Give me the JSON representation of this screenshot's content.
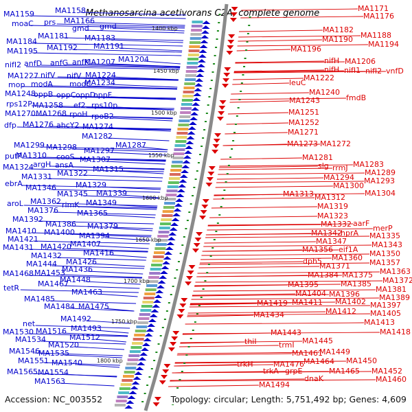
{
  "title": "Methanosarcina acetivorans C2A, complete genome",
  "accession_label": "Accession: NC_003552",
  "summary_label": "Topology: circular; Length: 5,751,492 bp; Genes: 4,609",
  "colors": {
    "left_genes": "#0000cc",
    "right_genes": "#dd0000",
    "backbone": "#8a8a8a",
    "tick_marks": "#1a8a1a"
  },
  "kbp_ticks": [
    "1400 kbp",
    "1450 kbp",
    "1500 kbp",
    "1550 kbp",
    "1600 kbp",
    "1650 kbp",
    "1700 kbp",
    "1750 kbp",
    "1800 kbp"
  ],
  "left_rows": [
    [
      [
        "MA1159",
        5,
        20
      ],
      [
        "MA1158",
        80,
        15
      ],
      [
        "moaC",
        17,
        34
      ],
      [
        "prs",
        64,
        32
      ],
      [
        "MA1166",
        93,
        30
      ]
    ],
    [
      [
        "gmd",
        105,
        41
      ],
      [
        "gmd",
        145,
        38
      ]
    ],
    [
      [
        "MA1181",
        55,
        52
      ],
      [
        "MA1183",
        123,
        55
      ]
    ],
    [
      [
        "MA1184",
        9,
        60
      ],
      [
        "MA1192",
        68,
        69
      ],
      [
        "MA1191",
        136,
        67
      ]
    ],
    [
      [
        "MA1195",
        10,
        74
      ]
    ],
    [
      [
        "MA1204",
        172,
        86
      ]
    ],
    [
      [
        "nifI2",
        7,
        94
      ],
      [
        "anfD",
        35,
        92
      ],
      [
        "anfG",
        73,
        91
      ],
      [
        "anfK",
        105,
        90
      ],
      [
        "MA1207",
        123,
        90
      ]
    ],
    [
      [
        "MA1227",
        11,
        110
      ],
      [
        "nifV",
        59,
        109
      ],
      [
        "nifV",
        97,
        110
      ],
      [
        "MA1224",
        124,
        109
      ]
    ],
    [
      [
        "mop",
        12,
        123
      ],
      [
        "modA",
        45,
        122
      ],
      [
        "modC",
        101,
        122
      ],
      [
        "MA1234",
        123,
        120
      ]
    ],
    [
      [
        "MA1248",
        7,
        136
      ],
      [
        "oppB",
        49,
        137
      ],
      [
        "oppC",
        82,
        138
      ],
      [
        "oppD",
        110,
        138
      ],
      [
        "oppF",
        136,
        138
      ]
    ],
    [
      [
        "rps12P",
        9,
        151
      ],
      [
        "MA1258",
        47,
        153
      ],
      [
        "ef2",
        107,
        153
      ],
      [
        "rps10p",
        133,
        153
      ]
    ],
    [
      [
        "MA1270",
        7,
        165
      ],
      [
        "MA1268",
        52,
        165
      ],
      [
        "rpoH",
        101,
        166
      ],
      [
        "rpoB2",
        133,
        169
      ]
    ],
    [
      [
        "dfp",
        6,
        182
      ],
      [
        "MA1276",
        33,
        181
      ],
      [
        "ahcY2",
        82,
        182
      ],
      [
        "MA1274",
        120,
        184
      ]
    ],
    [
      [
        "MA1282",
        119,
        198
      ]
    ],
    [
      [
        "MA1287",
        168,
        211
      ]
    ],
    [
      [
        "MA1299",
        20,
        211
      ],
      [
        "MA1298",
        67,
        214
      ],
      [
        "MA1297",
        122,
        219
      ]
    ],
    [
      [
        "putP",
        7,
        227
      ],
      [
        "MA1310",
        23,
        226
      ],
      [
        "cooS",
        82,
        228
      ],
      [
        "MA1307",
        116,
        232
      ]
    ],
    [
      [
        "argH",
        48,
        239
      ],
      [
        "ansA",
        80,
        240
      ],
      [
        "MA1324",
        4,
        243
      ],
      [
        "MA1315",
        135,
        246
      ]
    ],
    [
      [
        "MA1322",
        83,
        252
      ]
    ],
    [
      [
        "MA1331",
        31,
        257
      ]
    ],
    [
      [
        "ebrA",
        7,
        267
      ],
      [
        "MA1329",
        110,
        269
      ]
    ],
    [
      [
        "MA1346",
        37,
        273
      ],
      [
        "MA1345",
        83,
        282
      ],
      [
        "MA1339",
        140,
        281
      ]
    ],
    [
      [
        "aroL",
        10,
        296
      ],
      [
        "MA1362",
        44,
        293
      ],
      [
        "rimK",
        90,
        298
      ],
      [
        "MA1349",
        125,
        295
      ]
    ],
    [
      [
        "MA1376",
        40,
        306
      ],
      [
        "MA1365",
        112,
        310
      ]
    ],
    [
      [
        "MA1392",
        18,
        319
      ],
      [
        "MA1386",
        66,
        326
      ],
      [
        "MA1379",
        127,
        329
      ]
    ],
    [
      [
        "MA1410",
        8,
        336
      ],
      [
        "MA1400",
        64,
        338
      ]
    ],
    [
      [
        "MA1421",
        11,
        348
      ],
      [
        "MA1394",
        115,
        343
      ]
    ],
    [
      [
        "MA1407",
        102,
        355
      ]
    ],
    [
      [
        "MA1431",
        4,
        360
      ],
      [
        "MA1420",
        59,
        359
      ]
    ],
    [
      [
        "MA1416",
        121,
        368
      ]
    ],
    [
      [
        "MA1432",
        45,
        372
      ]
    ],
    [
      [
        "MA1444",
        38,
        384
      ],
      [
        "MA1426",
        96,
        381
      ]
    ],
    [
      [
        "MA1468",
        4,
        398
      ],
      [
        "MA1453",
        50,
        397
      ],
      [
        "MA1436",
        90,
        392
      ]
    ],
    [
      [
        "MA1448",
        87,
        407
      ]
    ],
    [
      [
        "tetR",
        5,
        419
      ],
      [
        "MA1467",
        55,
        413
      ]
    ],
    [
      [
        "MA1463",
        104,
        425
      ]
    ],
    [
      [
        "MA1485",
        35,
        435
      ]
    ],
    [
      [
        "MA1484",
        64,
        446
      ],
      [
        "MA1475",
        114,
        446
      ]
    ],
    [
      [
        "MA1492",
        88,
        464
      ]
    ],
    [
      [
        "net",
        33,
        471
      ]
    ],
    [
      [
        "MA1493",
        103,
        478
      ]
    ],
    [
      [
        "MA1530",
        4,
        483
      ],
      [
        "MA1516",
        52,
        482
      ]
    ],
    [
      [
        "MA1534",
        22,
        494
      ],
      [
        "MA1512",
        101,
        491
      ]
    ],
    [
      [
        "MA1520",
        70,
        502
      ]
    ],
    [
      [
        "MA1546",
        13,
        511
      ],
      [
        "MA1535",
        56,
        514
      ]
    ],
    [
      [
        "MA1551",
        26,
        525
      ],
      [
        "MA1540",
        75,
        528
      ]
    ],
    [
      [
        "MA1565",
        10,
        541
      ],
      [
        "MA1554",
        55,
        542
      ]
    ],
    [
      [
        "MA1563",
        50,
        555
      ]
    ]
  ],
  "right_rows": [
    [
      [
        "MA1171",
        521,
        12
      ],
      [
        "MA1176",
        529,
        23
      ]
    ],
    [
      [
        "MA1182",
        470,
        43
      ],
      [
        "MA1188",
        525,
        51
      ],
      [
        "MA1190",
        469,
        57
      ],
      [
        "MA1194",
        536,
        64
      ]
    ],
    [
      [
        "MA1196",
        423,
        71
      ]
    ],
    [
      [
        "nifH",
        472,
        88
      ],
      [
        "MA1206",
        502,
        89
      ]
    ],
    [
      [
        "nifH",
        472,
        101
      ],
      [
        "nifI1",
        501,
        102
      ],
      [
        "nifI2",
        532,
        103
      ],
      [
        "vnfD",
        562,
        103
      ]
    ],
    [
      [
        "MA1222",
        442,
        113
      ],
      [
        "leuC",
        421,
        120
      ]
    ],
    [
      [
        "MA1240",
        450,
        134
      ],
      [
        "fmdB",
        504,
        142
      ],
      [
        "MA1243",
        421,
        146
      ]
    ],
    [
      [
        "MA1251",
        420,
        163
      ],
      [
        "MA1252",
        420,
        178
      ]
    ],
    [
      [
        "MA1271",
        419,
        192
      ],
      [
        "MA1273",
        418,
        209
      ],
      [
        "MA1272",
        466,
        209
      ]
    ],
    [
      [
        "MA1281",
        440,
        229
      ],
      [
        "MA1283",
        514,
        239
      ],
      [
        "slg",
        463,
        241
      ],
      [
        "rrmJ",
        484,
        244
      ],
      [
        "MA1289",
        531,
        251
      ]
    ],
    [
      [
        "MA1294",
        471,
        258
      ],
      [
        "MA1293",
        530,
        263
      ],
      [
        "MA1300",
        485,
        270
      ],
      [
        "MA1304",
        531,
        281
      ]
    ],
    [
      [
        "MA1313",
        412,
        282
      ],
      [
        "MA1312",
        458,
        287
      ],
      [
        "MA1319",
        462,
        300
      ]
    ],
    [
      [
        "MA1323",
        462,
        314
      ],
      [
        "MA1332",
        467,
        326
      ],
      [
        "aarF",
        514,
        325
      ],
      [
        "merP",
        543,
        332
      ]
    ],
    [
      [
        "MA1342",
        453,
        339
      ],
      [
        "hprA",
        496,
        339
      ],
      [
        "MA1335",
        538,
        343
      ],
      [
        "MA1347",
        460,
        351
      ],
      [
        "MA1343",
        541,
        356
      ]
    ],
    [
      [
        "MA1356",
        440,
        363
      ],
      [
        "eif1A",
        493,
        363
      ],
      [
        "MA1350",
        538,
        369
      ],
      [
        "MA1360",
        483,
        375
      ]
    ],
    [
      [
        "dph5",
        441,
        380
      ],
      [
        "MA1357",
        538,
        382
      ],
      [
        "MA1371",
        465,
        387
      ],
      [
        "MA1363",
        553,
        395
      ]
    ],
    [
      [
        "MA1384",
        448,
        400
      ],
      [
        "MA1375",
        498,
        400
      ],
      [
        "MA1372",
        557,
        408
      ],
      [
        "MA1395",
        419,
        414
      ],
      [
        "MA1385",
        496,
        413
      ]
    ],
    [
      [
        "MA1381",
        547,
        421
      ],
      [
        "MA1404",
        430,
        427
      ],
      [
        "MA1396",
        479,
        428
      ],
      [
        "MA1389",
        552,
        433
      ]
    ],
    [
      [
        "MA1419",
        374,
        441
      ],
      [
        "MA1411",
        425,
        440
      ],
      [
        "MA1402",
        488,
        439
      ],
      [
        "MA1397",
        539,
        444
      ]
    ],
    [
      [
        "MA1412",
        474,
        453
      ],
      [
        "MA1405",
        539,
        456
      ],
      [
        "MA1434",
        369,
        458
      ]
    ],
    [
      [
        "MA1413",
        530,
        469
      ],
      [
        "MA1418",
        553,
        483
      ]
    ],
    [
      [
        "MA1443",
        394,
        484
      ],
      [
        "MA1445",
        440,
        496
      ],
      [
        "thiI",
        356,
        497
      ],
      [
        "trmI",
        406,
        502
      ]
    ],
    [
      [
        "MA1449",
        465,
        512
      ],
      [
        "MA1461",
        425,
        514
      ],
      [
        "MA1450",
        504,
        525
      ],
      [
        "MA1464",
        442,
        526
      ]
    ],
    [
      [
        "trkH",
        345,
        530
      ],
      [
        "MA1476",
        398,
        530
      ],
      [
        "MA1465",
        479,
        540
      ],
      [
        "MA1452",
        541,
        540
      ],
      [
        "trkA",
        383,
        540
      ],
      [
        "grpE",
        415,
        540
      ]
    ],
    [
      [
        "dnaK",
        443,
        551
      ],
      [
        "MA1460",
        547,
        552
      ],
      [
        "MA1494",
        377,
        560
      ]
    ]
  ]
}
